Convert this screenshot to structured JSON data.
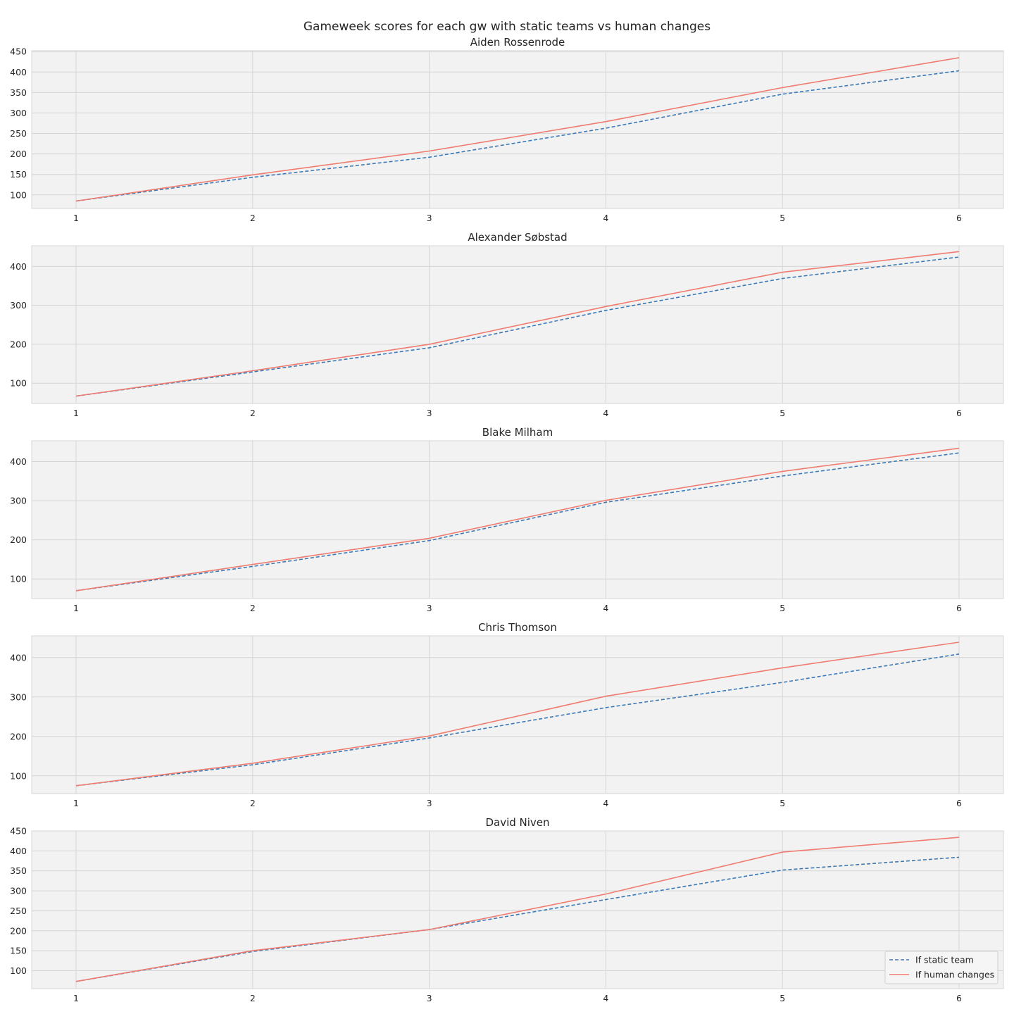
{
  "chart_data": {
    "type": "line",
    "title": "Gameweek scores for each gw with static teams vs human changes",
    "x": [
      1,
      2,
      3,
      4,
      5,
      6
    ],
    "legend": {
      "placement": "lower-right",
      "entries": [
        {
          "label": "If static team",
          "color": "#3c7ab7",
          "style": "dashed"
        },
        {
          "label": "If human changes",
          "color": "#f07c70",
          "style": "solid"
        }
      ]
    },
    "grid": true,
    "panels": [
      {
        "title": "Aiden Rossenrode",
        "ylim": [
          67,
          452
        ],
        "yticks": [
          100,
          150,
          200,
          250,
          300,
          350,
          400,
          450
        ],
        "series": [
          {
            "name": "If static team",
            "values": [
              85,
              143,
              192,
              263,
              346,
              403
            ]
          },
          {
            "name": "If human changes",
            "values": [
              85,
              149,
              207,
              279,
              362,
              435
            ]
          }
        ]
      },
      {
        "title": "Alexander Søbstad",
        "ylim": [
          48,
          453
        ],
        "yticks": [
          100,
          200,
          300,
          400
        ],
        "series": [
          {
            "name": "If static team",
            "values": [
              67,
              129,
              191,
              287,
              369,
              424
            ]
          },
          {
            "name": "If human changes",
            "values": [
              67,
              132,
              200,
              297,
              385,
              438
            ]
          }
        ]
      },
      {
        "title": "Blake Milham",
        "ylim": [
          50,
          453
        ],
        "yticks": [
          100,
          200,
          300,
          400
        ],
        "series": [
          {
            "name": "If static team",
            "values": [
              70,
              132,
              198,
              296,
              363,
              422
            ]
          },
          {
            "name": "If human changes",
            "values": [
              70,
              137,
              204,
              301,
              375,
              434
            ]
          }
        ]
      },
      {
        "title": "Chris Thomson",
        "ylim": [
          55,
          455
        ],
        "yticks": [
          100,
          200,
          300,
          400
        ],
        "series": [
          {
            "name": "If static team",
            "values": [
              75,
              128,
              196,
              273,
              337,
              409
            ]
          },
          {
            "name": "If human changes",
            "values": [
              75,
              132,
              201,
              302,
              374,
              439
            ]
          }
        ]
      },
      {
        "title": "David Niven",
        "ylim": [
          55,
          450
        ],
        "yticks": [
          100,
          150,
          200,
          250,
          300,
          350,
          400,
          450
        ],
        "series": [
          {
            "name": "If static team",
            "values": [
              73,
              148,
              203,
              278,
              352,
              384
            ]
          },
          {
            "name": "If human changes",
            "values": [
              73,
              150,
              203,
              292,
              397,
              434
            ]
          }
        ]
      }
    ]
  }
}
